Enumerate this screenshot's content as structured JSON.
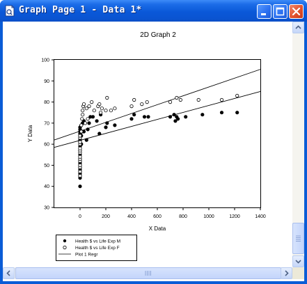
{
  "window": {
    "title": "Graph Page 1 - Data 1*",
    "icons": {
      "app": "sigmaplot-doc-icon",
      "minimize": "minimize-icon",
      "maximize": "maximize-icon",
      "close": "close-icon"
    }
  },
  "chart_data": {
    "type": "scatter",
    "title": "2D Graph 2",
    "xlabel": "X Data",
    "ylabel": "Y Data",
    "xlim": [
      -200,
      1400
    ],
    "ylim": [
      30,
      100
    ],
    "x_ticks": [
      "0",
      "200",
      "400",
      "600",
      "800",
      "1000",
      "1200",
      "1400"
    ],
    "y_ticks": [
      "30",
      "40",
      "50",
      "60",
      "70",
      "80",
      "90",
      "100"
    ],
    "grid": false,
    "legend_position": "bottom-left",
    "legend": [
      "Health $ vs Life Exp M",
      "Health $ vs Life Exp F",
      "Plot 1 Regr"
    ],
    "series": [
      {
        "name": "Health $ vs Life Exp M",
        "marker": "filled-circle",
        "points": [
          [
            0,
            40
          ],
          [
            0,
            44
          ],
          [
            0,
            45
          ],
          [
            0,
            46
          ],
          [
            0,
            47
          ],
          [
            0,
            48
          ],
          [
            0,
            49
          ],
          [
            0,
            50
          ],
          [
            0,
            51
          ],
          [
            0,
            52
          ],
          [
            0,
            53
          ],
          [
            0,
            55
          ],
          [
            0,
            57
          ],
          [
            0,
            59
          ],
          [
            0,
            61
          ],
          [
            0,
            62
          ],
          [
            0,
            63
          ],
          [
            0,
            64
          ],
          [
            0,
            65
          ],
          [
            0,
            66
          ],
          [
            0,
            67
          ],
          [
            0,
            68
          ],
          [
            10,
            60
          ],
          [
            10,
            64
          ],
          [
            15,
            66
          ],
          [
            10,
            69
          ],
          [
            20,
            70
          ],
          [
            30,
            66
          ],
          [
            30,
            71
          ],
          [
            50,
            62
          ],
          [
            60,
            67
          ],
          [
            70,
            70
          ],
          [
            80,
            73
          ],
          [
            100,
            73
          ],
          [
            130,
            71
          ],
          [
            150,
            65
          ],
          [
            160,
            74
          ],
          [
            200,
            68
          ],
          [
            210,
            70
          ],
          [
            270,
            69
          ],
          [
            400,
            72
          ],
          [
            420,
            74
          ],
          [
            500,
            73
          ],
          [
            530,
            73
          ],
          [
            700,
            73
          ],
          [
            730,
            74
          ],
          [
            740,
            71
          ],
          [
            750,
            73
          ],
          [
            760,
            72
          ],
          [
            820,
            73
          ],
          [
            950,
            74
          ],
          [
            1100,
            75
          ],
          [
            1220,
            75
          ]
        ]
      },
      {
        "name": "Health $ vs Life Exp F",
        "marker": "open-circle",
        "points": [
          [
            0,
            45
          ],
          [
            0,
            47
          ],
          [
            0,
            49
          ],
          [
            0,
            50
          ],
          [
            0,
            52
          ],
          [
            0,
            53
          ],
          [
            0,
            54
          ],
          [
            0,
            56
          ],
          [
            0,
            57
          ],
          [
            0,
            58
          ],
          [
            0,
            60
          ],
          [
            0,
            61
          ],
          [
            0,
            63
          ],
          [
            0,
            64
          ],
          [
            10,
            66
          ],
          [
            10,
            69
          ],
          [
            15,
            72
          ],
          [
            20,
            74
          ],
          [
            20,
            76
          ],
          [
            25,
            78
          ],
          [
            30,
            79
          ],
          [
            40,
            70
          ],
          [
            50,
            77
          ],
          [
            60,
            72
          ],
          [
            70,
            78
          ],
          [
            90,
            80
          ],
          [
            110,
            76
          ],
          [
            140,
            78
          ],
          [
            150,
            79
          ],
          [
            160,
            75
          ],
          [
            170,
            77
          ],
          [
            200,
            76
          ],
          [
            210,
            82
          ],
          [
            240,
            76
          ],
          [
            270,
            77
          ],
          [
            400,
            78
          ],
          [
            420,
            81
          ],
          [
            480,
            79
          ],
          [
            520,
            80
          ],
          [
            700,
            80
          ],
          [
            750,
            82
          ],
          [
            780,
            81
          ],
          [
            920,
            81
          ],
          [
            1100,
            81
          ],
          [
            1220,
            83
          ]
        ]
      }
    ],
    "regressions": [
      {
        "from": [
          -200,
          58.5
        ],
        "to": [
          1400,
          85
        ]
      },
      {
        "from": [
          -200,
          62
        ],
        "to": [
          1400,
          95.5
        ]
      }
    ]
  }
}
